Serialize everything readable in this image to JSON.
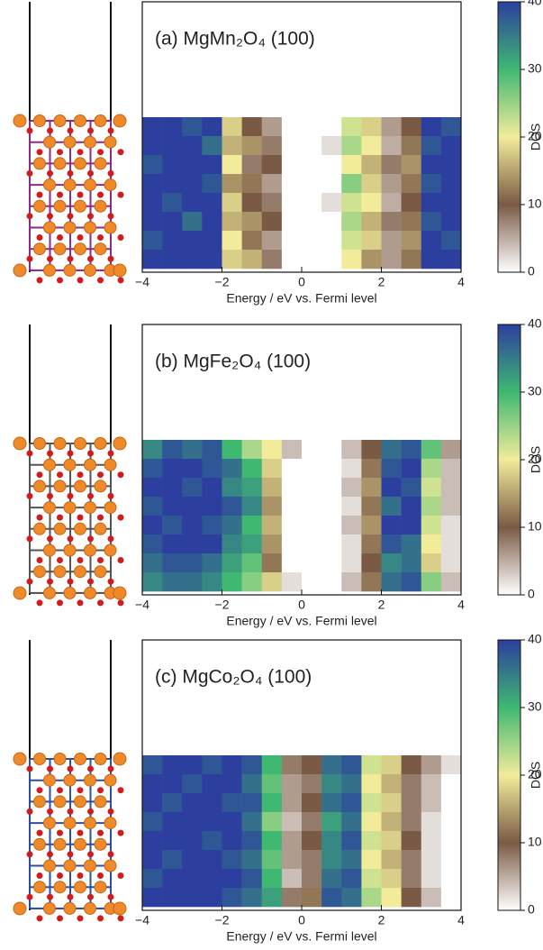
{
  "chart_data": [
    {
      "type": "heatmap",
      "title": "(a) MgMn₂O₄ (100)",
      "x_label": "Energy / eV vs. Fermi level",
      "colorbar_label": "DOS",
      "xlim": [
        -4,
        4
      ],
      "xticks": [
        {
          "value": -4,
          "label": "−4"
        },
        {
          "value": -2,
          "label": "−2"
        },
        0,
        2,
        4
      ],
      "zlim": [
        0,
        40
      ],
      "zticks": [
        0,
        10,
        20,
        30,
        40
      ],
      "colormap": [
        "#ffffff",
        "#7a5a45",
        "#f2ec9a",
        "#3fb872",
        "#2c3f9e"
      ],
      "bins": [
        -4,
        -3.5,
        -3,
        -2.5,
        -2,
        -1.5,
        -1,
        -0.5,
        0,
        0.5,
        1,
        1.5,
        2,
        2.5,
        3,
        3.5,
        4
      ],
      "values": [
        [
          40,
          40,
          38,
          40,
          18,
          10,
          6,
          0,
          0,
          0,
          22,
          18,
          6,
          10,
          40,
          38
        ],
        [
          40,
          40,
          40,
          36,
          16,
          14,
          8,
          0,
          0,
          2,
          24,
          20,
          5,
          12,
          38,
          40
        ],
        [
          38,
          40,
          40,
          40,
          20,
          8,
          10,
          0,
          0,
          0,
          20,
          16,
          8,
          14,
          40,
          40
        ],
        [
          40,
          40,
          40,
          38,
          14,
          12,
          6,
          0,
          0,
          0,
          26,
          18,
          6,
          12,
          38,
          40
        ],
        [
          40,
          38,
          40,
          40,
          18,
          10,
          8,
          0,
          0,
          2,
          22,
          20,
          5,
          10,
          40,
          40
        ],
        [
          40,
          40,
          36,
          40,
          16,
          14,
          10,
          0,
          0,
          0,
          24,
          16,
          8,
          12,
          38,
          40
        ],
        [
          38,
          40,
          40,
          40,
          20,
          12,
          6,
          0,
          0,
          0,
          22,
          18,
          6,
          14,
          40,
          38
        ],
        [
          40,
          40,
          40,
          40,
          18,
          16,
          8,
          0,
          0,
          0,
          20,
          14,
          6,
          12,
          40,
          40
        ]
      ]
    },
    {
      "type": "heatmap",
      "title": "(b) MgFe₂O₄ (100)",
      "x_label": "Energy / eV vs. Fermi level",
      "colorbar_label": "DOS",
      "xlim": [
        -4,
        4
      ],
      "xticks": [
        {
          "value": -4,
          "label": "−4"
        },
        {
          "value": -2,
          "label": "−2"
        },
        0,
        2,
        4
      ],
      "zlim": [
        0,
        40
      ],
      "zticks": [
        0,
        10,
        20,
        30,
        40
      ],
      "colormap": [
        "#ffffff",
        "#7a5a45",
        "#f2ec9a",
        "#3fb872",
        "#2c3f9e"
      ],
      "bins": [
        -4,
        -3.5,
        -3,
        -2.5,
        -2,
        -1.5,
        -1,
        -0.5,
        0,
        0.5,
        1,
        1.5,
        2,
        2.5,
        3,
        3.5,
        4
      ],
      "values": [
        [
          34,
          38,
          36,
          38,
          30,
          24,
          20,
          4,
          0,
          0,
          4,
          10,
          36,
          38,
          28,
          6
        ],
        [
          38,
          40,
          40,
          38,
          36,
          30,
          18,
          0,
          0,
          0,
          2,
          12,
          38,
          40,
          24,
          4
        ],
        [
          40,
          40,
          38,
          40,
          34,
          32,
          16,
          0,
          0,
          0,
          4,
          14,
          40,
          38,
          22,
          4
        ],
        [
          38,
          40,
          40,
          40,
          38,
          34,
          14,
          0,
          0,
          0,
          2,
          12,
          36,
          40,
          24,
          4
        ],
        [
          40,
          38,
          40,
          38,
          36,
          30,
          16,
          0,
          0,
          0,
          4,
          14,
          40,
          40,
          22,
          2
        ],
        [
          38,
          40,
          40,
          40,
          34,
          32,
          14,
          0,
          0,
          0,
          2,
          12,
          38,
          36,
          20,
          2
        ],
        [
          36,
          38,
          38,
          36,
          32,
          28,
          12,
          0,
          0,
          0,
          2,
          10,
          34,
          36,
          18,
          2
        ],
        [
          34,
          36,
          36,
          34,
          30,
          26,
          18,
          2,
          0,
          0,
          4,
          12,
          36,
          38,
          26,
          4
        ]
      ]
    },
    {
      "type": "heatmap",
      "title": "(c) MgCo₂O₄ (100)",
      "x_label": "Energy / eV vs. Fermi level",
      "colorbar_label": "DOS",
      "xlim": [
        -4,
        4
      ],
      "xticks": [
        {
          "value": -4,
          "label": "−4"
        },
        {
          "value": -2,
          "label": "−2"
        },
        0,
        2,
        4
      ],
      "zlim": [
        0,
        40
      ],
      "zticks": [
        0,
        10,
        20,
        30,
        40
      ],
      "colormap": [
        "#ffffff",
        "#7a5a45",
        "#f2ec9a",
        "#3fb872",
        "#2c3f9e"
      ],
      "bins": [
        -4,
        -3.5,
        -3,
        -2.5,
        -2,
        -1.5,
        -1,
        -0.5,
        0,
        0.5,
        1,
        1.5,
        2,
        2.5,
        3,
        3.5,
        4
      ],
      "values": [
        [
          38,
          40,
          40,
          38,
          40,
          38,
          30,
          8,
          10,
          36,
          38,
          22,
          18,
          10,
          6,
          2
        ],
        [
          40,
          40,
          38,
          40,
          40,
          36,
          28,
          6,
          8,
          34,
          36,
          20,
          16,
          8,
          4,
          0
        ],
        [
          40,
          38,
          40,
          40,
          38,
          38,
          30,
          6,
          10,
          36,
          38,
          22,
          18,
          8,
          4,
          0
        ],
        [
          38,
          40,
          40,
          40,
          40,
          36,
          26,
          4,
          8,
          32,
          36,
          20,
          16,
          8,
          2,
          0
        ],
        [
          40,
          40,
          40,
          38,
          40,
          38,
          30,
          6,
          10,
          34,
          38,
          22,
          18,
          10,
          2,
          0
        ],
        [
          40,
          38,
          40,
          40,
          38,
          36,
          28,
          6,
          8,
          34,
          36,
          20,
          16,
          8,
          2,
          0
        ],
        [
          38,
          40,
          40,
          40,
          40,
          38,
          30,
          4,
          8,
          36,
          38,
          22,
          18,
          8,
          2,
          0
        ],
        [
          40,
          40,
          40,
          40,
          38,
          36,
          32,
          8,
          12,
          38,
          36,
          24,
          20,
          10,
          4,
          0
        ]
      ]
    }
  ]
}
